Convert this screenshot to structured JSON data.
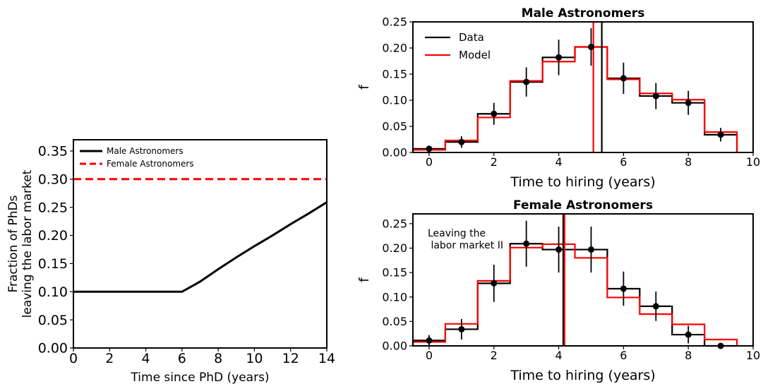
{
  "chart_data": [
    {
      "type": "line",
      "title": "",
      "xlabel": "Time since PhD (years)",
      "ylabel_lines": [
        "Fraction of PhDs",
        "leaving the labor market"
      ],
      "xlim": [
        0,
        14
      ],
      "ylim": [
        0,
        0.37
      ],
      "xticks": [
        0,
        2,
        4,
        6,
        8,
        10,
        12,
        14
      ],
      "yticks": [
        0.0,
        0.05,
        0.1,
        0.15,
        0.2,
        0.25,
        0.3,
        0.35
      ],
      "ytick_labels": [
        "0.00",
        "0.05",
        "0.10",
        "0.15",
        "0.20",
        "0.25",
        "0.30",
        "0.35"
      ],
      "legend_position": "top-left",
      "series": [
        {
          "name": "Male Astronomers",
          "color": "#000000",
          "style": "solid",
          "x": [
            0,
            6,
            7,
            8,
            9,
            10,
            11,
            12,
            13,
            14
          ],
          "y": [
            0.1,
            0.1,
            0.118,
            0.14,
            0.161,
            0.181,
            0.2,
            0.22,
            0.239,
            0.259
          ]
        },
        {
          "name": "Female Astronomers",
          "color": "#ff0000",
          "style": "dashed",
          "x": [
            0,
            14
          ],
          "y": [
            0.3,
            0.3
          ]
        }
      ]
    },
    {
      "type": "histogram",
      "title": "Male Astronomers",
      "xlabel": "Time to hiring (years)",
      "ylabel": "f",
      "xlim": [
        -0.5,
        10
      ],
      "ylim": [
        0,
        0.25
      ],
      "xticks": [
        0,
        2,
        4,
        6,
        8,
        10
      ],
      "yticks": [
        0.0,
        0.05,
        0.1,
        0.15,
        0.2,
        0.25
      ],
      "ytick_labels": [
        "0.00",
        "0.05",
        "0.10",
        "0.15",
        "0.20",
        "0.25"
      ],
      "legend_position": "top-left",
      "annotation": "",
      "bins": [
        0,
        1,
        2,
        3,
        4,
        5,
        6,
        7,
        8,
        9
      ],
      "series": [
        {
          "name": "Data",
          "color": "#000000",
          "values": [
            0.007,
            0.02,
            0.074,
            0.135,
            0.182,
            0.202,
            0.142,
            0.108,
            0.095,
            0.034
          ]
        },
        {
          "name": "Model",
          "color": "#ff0000",
          "values": [
            0.005,
            0.023,
            0.067,
            0.137,
            0.174,
            0.202,
            0.14,
            0.113,
            0.101,
            0.039
          ]
        }
      ],
      "errors": [
        0.006,
        0.011,
        0.021,
        0.028,
        0.034,
        0.036,
        0.03,
        0.025,
        0.023,
        0.013
      ],
      "vlines": [
        {
          "x": 5.33,
          "color": "#000000"
        },
        {
          "x": 5.07,
          "color": "#ff0000"
        }
      ]
    },
    {
      "type": "histogram",
      "title": "Female Astronomers",
      "xlabel": "Time to hiring (years)",
      "ylabel": "f",
      "xlim": [
        -0.5,
        10
      ],
      "ylim": [
        0,
        0.27
      ],
      "xticks": [
        0,
        2,
        4,
        6,
        8,
        10
      ],
      "yticks": [
        0.0,
        0.05,
        0.1,
        0.15,
        0.2,
        0.25
      ],
      "ytick_labels": [
        "0.00",
        "0.05",
        "0.10",
        "0.15",
        "0.20",
        "0.25"
      ],
      "legend_position": "",
      "annotation": "Leaving the\n labor market II",
      "bins": [
        0,
        1,
        2,
        3,
        4,
        5,
        6,
        7,
        8,
        9
      ],
      "series": [
        {
          "name": "Data",
          "color": "#000000",
          "values": [
            0.011,
            0.034,
            0.128,
            0.209,
            0.197,
            0.197,
            0.117,
            0.081,
            0.023,
            0.0
          ]
        },
        {
          "name": "Model",
          "color": "#ff0000",
          "values": [
            0.008,
            0.045,
            0.133,
            0.201,
            0.208,
            0.18,
            0.099,
            0.065,
            0.044,
            0.013
          ]
        }
      ],
      "errors": [
        0.011,
        0.021,
        0.038,
        0.047,
        0.047,
        0.047,
        0.035,
        0.03,
        0.018,
        0.002
      ],
      "vlines": [
        {
          "x": 4.14,
          "color": "#000000"
        },
        {
          "x": 4.18,
          "color": "#ff0000"
        }
      ]
    }
  ]
}
